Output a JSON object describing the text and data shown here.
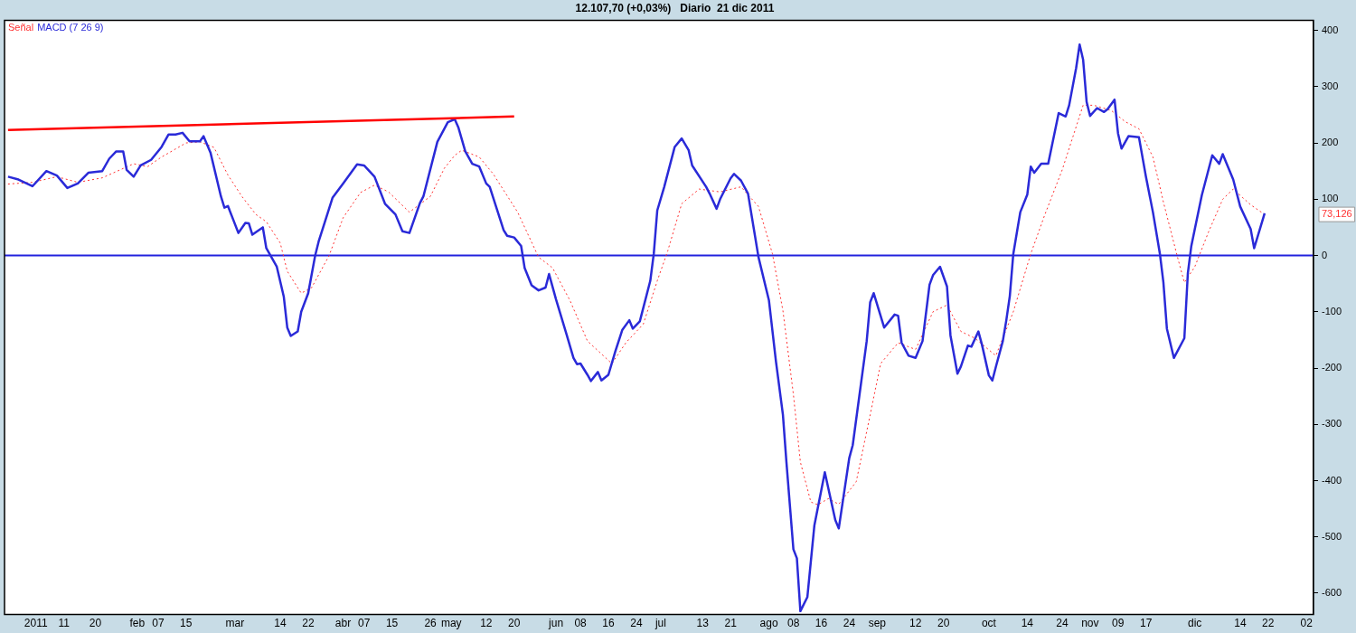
{
  "chart_data": {
    "type": "line",
    "title": "12.107,70 (+0,03%)   Diario  21 dic 2011",
    "xlim": [
      "2010-12-25",
      "2012-01-04"
    ],
    "ylim": [
      -638,
      418
    ],
    "xticks": [
      {
        "value": "2011-01-03",
        "label": "2011"
      },
      {
        "value": "2011-01-11",
        "label": "11"
      },
      {
        "value": "2011-01-20",
        "label": "20"
      },
      {
        "value": "2011-02-01",
        "label": "feb"
      },
      {
        "value": "2011-02-07",
        "label": "07"
      },
      {
        "value": "2011-02-15",
        "label": "15"
      },
      {
        "value": "2011-03-01",
        "label": "mar"
      },
      {
        "value": "2011-03-14",
        "label": "14"
      },
      {
        "value": "2011-03-22",
        "label": "22"
      },
      {
        "value": "2011-04-01",
        "label": "abr"
      },
      {
        "value": "2011-04-07",
        "label": "07"
      },
      {
        "value": "2011-04-15",
        "label": "15"
      },
      {
        "value": "2011-04-26",
        "label": "26"
      },
      {
        "value": "2011-05-02",
        "label": "may"
      },
      {
        "value": "2011-05-12",
        "label": "12"
      },
      {
        "value": "2011-05-20",
        "label": "20"
      },
      {
        "value": "2011-06-01",
        "label": "jun"
      },
      {
        "value": "2011-06-08",
        "label": "08"
      },
      {
        "value": "2011-06-16",
        "label": "16"
      },
      {
        "value": "2011-06-24",
        "label": "24"
      },
      {
        "value": "2011-07-01",
        "label": "jul"
      },
      {
        "value": "2011-07-13",
        "label": "13"
      },
      {
        "value": "2011-07-21",
        "label": "21"
      },
      {
        "value": "2011-08-01",
        "label": "ago"
      },
      {
        "value": "2011-08-08",
        "label": "08"
      },
      {
        "value": "2011-08-16",
        "label": "16"
      },
      {
        "value": "2011-08-24",
        "label": "24"
      },
      {
        "value": "2011-09-01",
        "label": "sep"
      },
      {
        "value": "2011-09-12",
        "label": "12"
      },
      {
        "value": "2011-09-20",
        "label": "20"
      },
      {
        "value": "2011-10-03",
        "label": "oct"
      },
      {
        "value": "2011-10-14",
        "label": "14"
      },
      {
        "value": "2011-10-24",
        "label": "24"
      },
      {
        "value": "2011-11-01",
        "label": "nov"
      },
      {
        "value": "2011-11-09",
        "label": "09"
      },
      {
        "value": "2011-11-17",
        "label": "17"
      },
      {
        "value": "2011-12-01",
        "label": "dic"
      },
      {
        "value": "2011-12-14",
        "label": "14"
      },
      {
        "value": "2011-12-22",
        "label": "22"
      },
      {
        "value": "2012-01-02",
        "label": "02"
      }
    ],
    "yticks": [
      400,
      300,
      200,
      100,
      0,
      -100,
      -200,
      -300,
      -400,
      -500,
      -600
    ],
    "grid": false,
    "legend": "top left",
    "marker": "none",
    "ref_lines": [
      {
        "axis": "y",
        "value": 0,
        "color": "#2222dd"
      }
    ],
    "annotations": [
      "73,126"
    ],
    "series": [
      {
        "name": "Señal",
        "color": "#ff3030",
        "line_style": "dotted",
        "x": [
          "2010-12-26",
          "2011-01-02",
          "2011-01-09",
          "2011-01-15",
          "2011-01-22",
          "2011-01-31",
          "2011-02-04",
          "2011-02-08",
          "2011-02-15",
          "2011-02-19",
          "2011-02-23",
          "2011-02-27",
          "2011-03-03",
          "2011-03-07",
          "2011-03-10",
          "2011-03-14",
          "2011-03-16",
          "2011-03-20",
          "2011-03-23",
          "2011-03-28",
          "2011-04-01",
          "2011-04-06",
          "2011-04-10",
          "2011-04-14",
          "2011-04-20",
          "2011-04-26",
          "2011-04-30",
          "2011-05-03",
          "2011-05-05",
          "2011-05-10",
          "2011-05-14",
          "2011-05-21",
          "2011-05-27",
          "2011-05-31",
          "2011-06-05",
          "2011-06-10",
          "2011-06-17",
          "2011-06-21",
          "2011-06-26",
          "2011-06-30",
          "2011-07-03",
          "2011-07-07",
          "2011-07-12",
          "2011-07-18",
          "2011-07-24",
          "2011-07-29",
          "2011-08-02",
          "2011-08-05",
          "2011-08-08",
          "2011-08-10",
          "2011-08-13",
          "2011-08-15",
          "2011-08-18",
          "2011-08-21",
          "2011-08-26",
          "2011-08-30",
          "2011-09-02",
          "2011-09-07",
          "2011-09-12",
          "2011-09-17",
          "2011-09-21",
          "2011-09-25",
          "2011-09-29",
          "2011-10-05",
          "2011-10-10",
          "2011-10-15",
          "2011-10-19",
          "2011-10-24",
          "2011-10-30",
          "2011-11-02",
          "2011-11-07",
          "2011-11-11",
          "2011-11-15",
          "2011-11-19",
          "2011-11-22",
          "2011-11-26",
          "2011-11-28",
          "2011-12-01",
          "2011-12-05",
          "2011-12-09",
          "2011-12-12",
          "2011-12-17",
          "2011-12-21"
        ],
        "values": [
          127,
          130,
          140,
          130,
          138,
          163,
          158,
          175,
          200,
          202,
          192,
          143,
          105,
          73,
          60,
          22,
          -28,
          -67,
          -57,
          0,
          67,
          112,
          125,
          113,
          77,
          105,
          155,
          178,
          187,
          175,
          145,
          77,
          -3,
          -22,
          -80,
          -152,
          -192,
          -155,
          -122,
          -45,
          8,
          92,
          118,
          113,
          122,
          87,
          3,
          -98,
          -247,
          -367,
          -438,
          -443,
          -432,
          -442,
          -402,
          -283,
          -192,
          -155,
          -167,
          -100,
          -88,
          -135,
          -147,
          -178,
          -100,
          3,
          72,
          152,
          267,
          267,
          258,
          238,
          225,
          175,
          95,
          -2,
          -48,
          -20,
          43,
          100,
          118,
          90,
          73
        ]
      },
      {
        "name": "MACD (7 26 9)",
        "color": "#2a2ad8",
        "line_style": "solid",
        "x": [
          "2010-12-26",
          "2010-12-29",
          "2011-01-02",
          "2011-01-06",
          "2011-01-09",
          "2011-01-12",
          "2011-01-15",
          "2011-01-18",
          "2011-01-22",
          "2011-01-24",
          "2011-01-26",
          "2011-01-28",
          "2011-01-29",
          "2011-01-31",
          "2011-02-02",
          "2011-02-05",
          "2011-02-08",
          "2011-02-10",
          "2011-02-12",
          "2011-02-14",
          "2011-02-16",
          "2011-02-19",
          "2011-02-20",
          "2011-02-22",
          "2011-02-25",
          "2011-02-26",
          "2011-02-27",
          "2011-03-02",
          "2011-03-04",
          "2011-03-05",
          "2011-03-06",
          "2011-03-09",
          "2011-03-10",
          "2011-03-13",
          "2011-03-15",
          "2011-03-16",
          "2011-03-17",
          "2011-03-19",
          "2011-03-20",
          "2011-03-22",
          "2011-03-24",
          "2011-03-25",
          "2011-03-29",
          "2011-04-01",
          "2011-04-05",
          "2011-04-07",
          "2011-04-10",
          "2011-04-13",
          "2011-04-16",
          "2011-04-18",
          "2011-04-20",
          "2011-04-23",
          "2011-04-24",
          "2011-04-28",
          "2011-05-01",
          "2011-05-03",
          "2011-05-04",
          "2011-05-06",
          "2011-05-08",
          "2011-05-10",
          "2011-05-12",
          "2011-05-13",
          "2011-05-17",
          "2011-05-18",
          "2011-05-20",
          "2011-05-22",
          "2011-05-23",
          "2011-05-25",
          "2011-05-27",
          "2011-05-29",
          "2011-05-30",
          "2011-06-01",
          "2011-06-04",
          "2011-06-06",
          "2011-06-07",
          "2011-06-08",
          "2011-06-10",
          "2011-06-11",
          "2011-06-13",
          "2011-06-14",
          "2011-06-16",
          "2011-06-18",
          "2011-06-20",
          "2011-06-22",
          "2011-06-23",
          "2011-06-25",
          "2011-06-28",
          "2011-06-29",
          "2011-06-30",
          "2011-07-02",
          "2011-07-05",
          "2011-07-07",
          "2011-07-09",
          "2011-07-10",
          "2011-07-14",
          "2011-07-15",
          "2011-07-17",
          "2011-07-18",
          "2011-07-21",
          "2011-07-22",
          "2011-07-24",
          "2011-07-26",
          "2011-07-29",
          "2011-08-01",
          "2011-08-03",
          "2011-08-05",
          "2011-08-06",
          "2011-08-08",
          "2011-08-09",
          "2011-08-10",
          "2011-08-12",
          "2011-08-14",
          "2011-08-17",
          "2011-08-20",
          "2011-08-21",
          "2011-08-24",
          "2011-08-25",
          "2011-08-29",
          "2011-08-30",
          "2011-08-31",
          "2011-09-03",
          "2011-09-06",
          "2011-09-07",
          "2011-09-08",
          "2011-09-10",
          "2011-09-12",
          "2011-09-14",
          "2011-09-16",
          "2011-09-17",
          "2011-09-19",
          "2011-09-21",
          "2011-09-22",
          "2011-09-24",
          "2011-09-25",
          "2011-09-27",
          "2011-09-28",
          "2011-09-30",
          "2011-10-01",
          "2011-10-03",
          "2011-10-04",
          "2011-10-05",
          "2011-10-07",
          "2011-10-08",
          "2011-10-09",
          "2011-10-10",
          "2011-10-12",
          "2011-10-14",
          "2011-10-15",
          "2011-10-16",
          "2011-10-18",
          "2011-10-20",
          "2011-10-23",
          "2011-10-25",
          "2011-10-26",
          "2011-10-28",
          "2011-10-29",
          "2011-10-30",
          "2011-10-31",
          "2011-11-01",
          "2011-11-03",
          "2011-11-05",
          "2011-11-06",
          "2011-11-08",
          "2011-11-09",
          "2011-11-10",
          "2011-11-12",
          "2011-11-15",
          "2011-11-17",
          "2011-11-19",
          "2011-11-21",
          "2011-11-22",
          "2011-11-23",
          "2011-11-25",
          "2011-11-28",
          "2011-11-29",
          "2011-11-30",
          "2011-12-03",
          "2011-12-06",
          "2011-12-08",
          "2011-12-09",
          "2011-12-12",
          "2011-12-14",
          "2011-12-17",
          "2011-12-18",
          "2011-12-21"
        ],
        "values": [
          140,
          135,
          123,
          150,
          142,
          120,
          128,
          147,
          150,
          172,
          185,
          185,
          152,
          140,
          160,
          170,
          193,
          215,
          215,
          218,
          203,
          203,
          212,
          183,
          105,
          85,
          88,
          40,
          58,
          57,
          37,
          50,
          13,
          -20,
          -73,
          -128,
          -143,
          -135,
          -100,
          -67,
          0,
          25,
          103,
          128,
          162,
          160,
          140,
          92,
          73,
          43,
          40,
          93,
          105,
          202,
          237,
          242,
          228,
          185,
          163,
          158,
          128,
          122,
          45,
          35,
          32,
          17,
          -22,
          -53,
          -62,
          -57,
          -33,
          -78,
          -140,
          -182,
          -193,
          -192,
          -212,
          -223,
          -207,
          -222,
          -212,
          -170,
          -132,
          -115,
          -130,
          -117,
          -45,
          3,
          80,
          122,
          193,
          208,
          187,
          160,
          122,
          110,
          83,
          100,
          137,
          145,
          133,
          110,
          -3,
          -80,
          -188,
          -283,
          -367,
          -522,
          -538,
          -632,
          -607,
          -480,
          -385,
          -470,
          -485,
          -360,
          -337,
          -152,
          -83,
          -67,
          -128,
          -105,
          -107,
          -155,
          -178,
          -182,
          -152,
          -52,
          -35,
          -20,
          -55,
          -142,
          -210,
          -197,
          -160,
          -162,
          -135,
          -158,
          -213,
          -222,
          -198,
          -152,
          -115,
          -72,
          3,
          77,
          108,
          158,
          147,
          163,
          163,
          253,
          247,
          267,
          333,
          375,
          348,
          273,
          248,
          262,
          255,
          260,
          277,
          217,
          190,
          212,
          210,
          140,
          77,
          3,
          -48,
          -130,
          -182,
          -147,
          -32,
          17,
          107,
          178,
          163,
          180,
          135,
          87,
          47,
          13,
          75
        ]
      },
      {
        "color": "#ff0000",
        "line_style": "solid",
        "x": [
          "2010-12-26",
          "2011-05-20"
        ],
        "values": [
          223,
          247
        ]
      }
    ]
  }
}
